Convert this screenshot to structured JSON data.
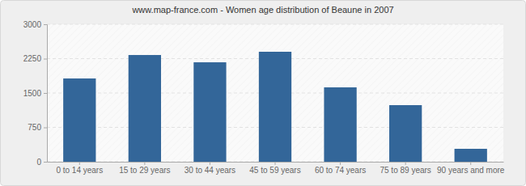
{
  "chart_data": {
    "type": "bar",
    "title": "www.map-france.com - Women age distribution of Beaune in 2007",
    "categories": [
      "0 to 14 years",
      "15 to 29 years",
      "30 to 44 years",
      "45 to 59 years",
      "60 to 74 years",
      "75 to 89 years",
      "90 years and more"
    ],
    "values": [
      1817,
      2329,
      2170,
      2400,
      1623,
      1235,
      282
    ],
    "color": "#336699",
    "ylim": [
      0,
      3000
    ],
    "yticks": [
      0,
      750,
      1500,
      2250,
      3000
    ],
    "grid": true
  }
}
